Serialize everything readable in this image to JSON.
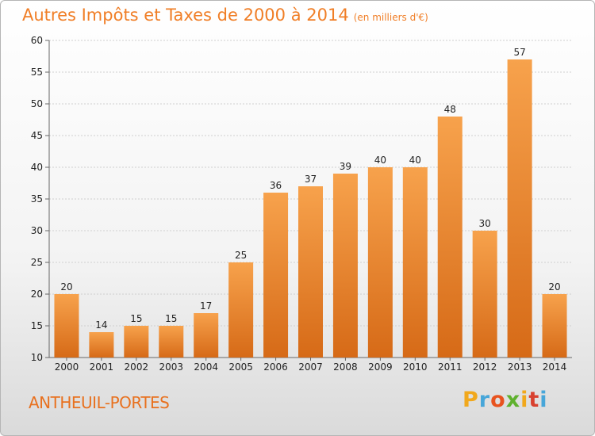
{
  "title": "Autres Impôts et Taxes de 2000 à 2014",
  "unit": "(en milliers d'€)",
  "place": "ANTHEUIL-PORTES",
  "logo": {
    "letters": [
      "P",
      "r",
      "o",
      "x",
      "i",
      "t",
      "i"
    ],
    "colors": [
      "#f1a81c",
      "#47a6d9",
      "#e8531f",
      "#5fb12e",
      "#f1a81c",
      "#d8412f",
      "#47a6d9"
    ]
  },
  "chart_data": {
    "type": "bar",
    "categories": [
      "2000",
      "2001",
      "2002",
      "2003",
      "2004",
      "2005",
      "2006",
      "2007",
      "2008",
      "2009",
      "2010",
      "2011",
      "2012",
      "2013",
      "2014"
    ],
    "values": [
      20,
      14,
      15,
      15,
      17,
      25,
      36,
      37,
      39,
      40,
      40,
      48,
      30,
      57,
      20
    ],
    "ylim": [
      10,
      60
    ],
    "yticks": [
      10,
      15,
      20,
      25,
      30,
      35,
      40,
      45,
      50,
      55,
      60
    ],
    "grid": true,
    "bar_color": "#f08a2e"
  }
}
